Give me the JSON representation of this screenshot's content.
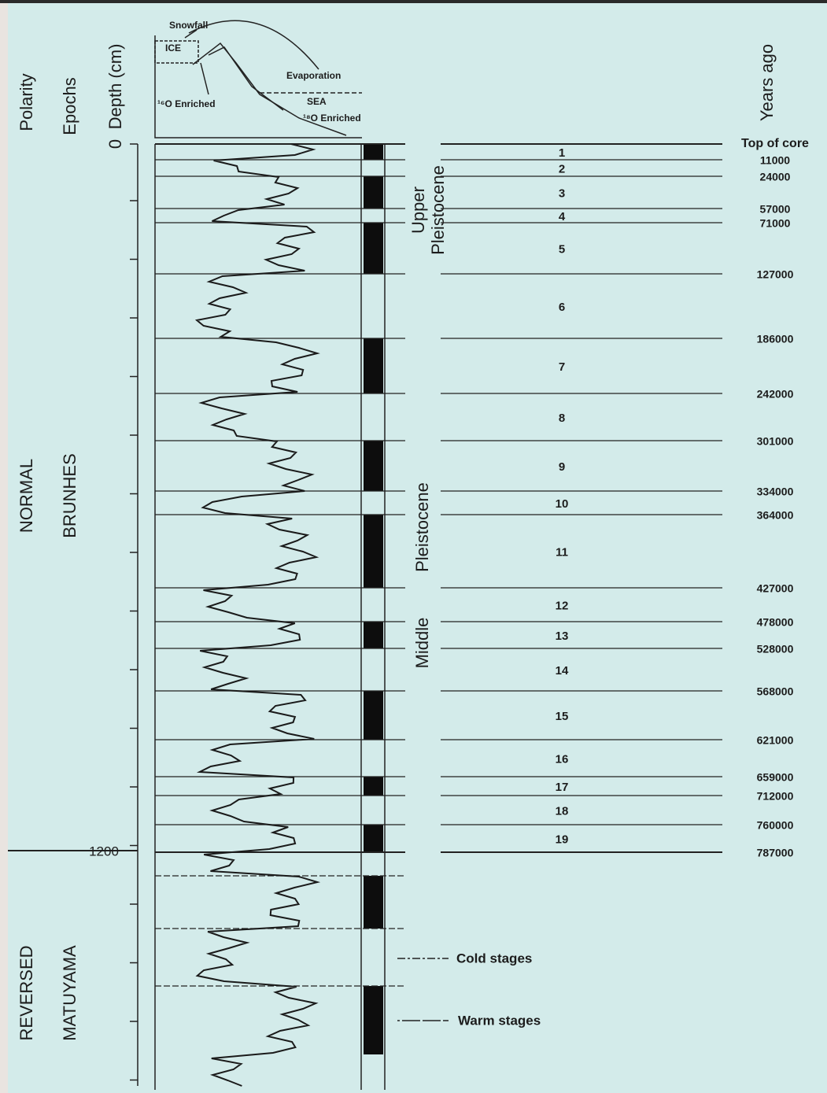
{
  "headers": {
    "polarity": "Polarity",
    "epochs": "Epochs",
    "depth": "Depth (cm)",
    "years": "Years ago"
  },
  "inset": {
    "snowfall": "Snowfall",
    "ice": "ICE",
    "evaporation": "Evaporation",
    "sea": "SEA",
    "ice_enriched": "¹⁶O Enriched",
    "sea_enriched": "¹⁸O Enriched"
  },
  "depth_labels": [
    "0",
    "1200"
  ],
  "polarity": [
    "NORMAL",
    "REVERSED"
  ],
  "epochs": [
    "BRUNHES",
    "MATUYAMA"
  ],
  "series": [
    [
      "Upper",
      "Pleistocene"
    ],
    [
      "Middle",
      "Pleistocene"
    ]
  ],
  "stages": [
    "1",
    "2",
    "3",
    "4",
    "5",
    "6",
    "7",
    "8",
    "9",
    "10",
    "11",
    "12",
    "13",
    "14",
    "15",
    "16",
    "17",
    "18",
    "19"
  ],
  "ages": [
    "Top of core",
    "11000",
    "24000",
    "57000",
    "71000",
    "127000",
    "186000",
    "242000",
    "301000",
    "334000",
    "364000",
    "427000",
    "478000",
    "528000",
    "568000",
    "621000",
    "659000",
    "712000",
    "760000",
    "787000"
  ],
  "legend": [
    "Cold stages",
    "Warm stages"
  ]
}
